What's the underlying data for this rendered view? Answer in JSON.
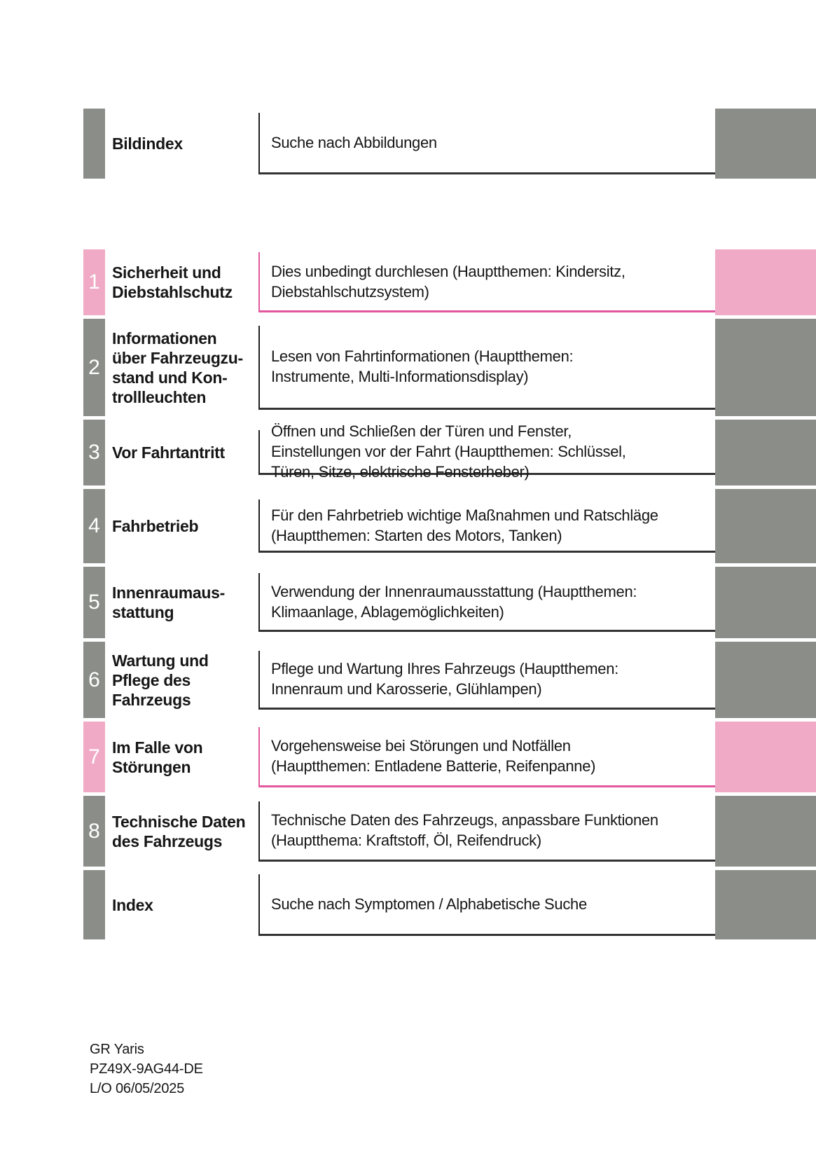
{
  "colors": {
    "gray": "#8b8e88",
    "pink": "#f0aac5",
    "pink_border": "#e2579e",
    "dark_border": "#1f1f1f",
    "text": "#161616"
  },
  "toc": {
    "rows": [
      {
        "id": "bildindex",
        "number": "",
        "accent": "gray",
        "title": "Bildindex",
        "description": "Suche nach Abbildungen"
      },
      {
        "id": "section-1",
        "number": "1",
        "accent": "pink",
        "title": "Sicherheit und\nDiebstahlschutz",
        "description": "Dies unbedingt durchlesen (Hauptthemen: Kindersitz,\nDiebstahlschutzsystem)"
      },
      {
        "id": "section-2",
        "number": "2",
        "accent": "gray",
        "title": "Informationen\nüber Fahrzeugzu-\nstand und Kon-\ntrollleuchten",
        "description": "Lesen von Fahrtinformationen (Hauptthemen:\nInstrumente, Multi-Informationsdisplay)"
      },
      {
        "id": "section-3",
        "number": "3",
        "accent": "gray",
        "title": "Vor Fahrtantritt",
        "description": "Öffnen und Schließen der Türen und Fenster,\nEinstellungen vor der Fahrt (Hauptthemen: Schlüssel,\nTüren, Sitze, elektrische Fensterheber)"
      },
      {
        "id": "section-4",
        "number": "4",
        "accent": "gray",
        "title": "Fahrbetrieb",
        "description": "Für den Fahrbetrieb wichtige Maßnahmen und Ratschläge\n(Hauptthemen: Starten des Motors, Tanken)"
      },
      {
        "id": "section-5",
        "number": "5",
        "accent": "gray",
        "title": "Innenraumaus-\nstattung",
        "description": "Verwendung der Innenraumausstattung (Hauptthemen:\nKlimaanlage, Ablagemöglichkeiten)"
      },
      {
        "id": "section-6",
        "number": "6",
        "accent": "gray",
        "title": "Wartung und\nPflege des\nFahrzeugs",
        "description": "Pflege und Wartung Ihres Fahrzeugs (Hauptthemen:\nInnenraum und Karosserie, Glühlampen)"
      },
      {
        "id": "section-7",
        "number": "7",
        "accent": "pink",
        "title": "Im Falle von\nStörungen",
        "description": "Vorgehensweise bei Störungen und Notfällen\n(Hauptthemen: Entladene Batterie, Reifenpanne)"
      },
      {
        "id": "section-8",
        "number": "8",
        "accent": "gray",
        "title": "Technische Daten\ndes Fahrzeugs",
        "description": "Technische Daten des Fahrzeugs, anpassbare Funktionen\n(Hauptthema: Kraftstoff, Öl, Reifendruck)"
      },
      {
        "id": "index",
        "number": "",
        "accent": "gray",
        "title": "Index",
        "description": "Suche nach Symptomen / Alphabetische Suche"
      }
    ]
  },
  "footer": {
    "model": "GR Yaris",
    "part_number": "PZ49X-9AG44-DE",
    "layout_date": "L/O 06/05/2025"
  }
}
